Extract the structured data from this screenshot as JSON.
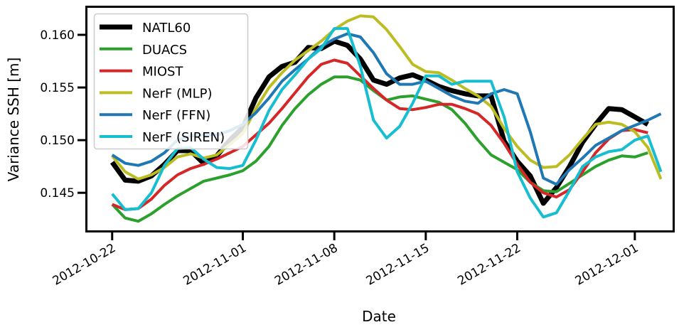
{
  "chart_data": {
    "type": "line",
    "title": "",
    "xlabel": "Date",
    "ylabel": "Variance SSH [m]",
    "x_ticks": [
      "2012-10-22",
      "2012-11-01",
      "2012-11-08",
      "2012-11-15",
      "2012-11-22",
      "2012-12-01"
    ],
    "y_ticks": [
      "0.145",
      "0.150",
      "0.155",
      "0.160"
    ],
    "xlim": [
      "2012-10-20",
      "2012-12-04"
    ],
    "ylim": [
      0.1413,
      0.1627
    ],
    "grid": false,
    "legend_position": "top-left",
    "x": [
      "2012-10-22",
      "2012-10-23",
      "2012-10-24",
      "2012-10-25",
      "2012-10-26",
      "2012-10-27",
      "2012-10-28",
      "2012-10-29",
      "2012-10-30",
      "2012-10-31",
      "2012-11-01",
      "2012-11-02",
      "2012-11-03",
      "2012-11-04",
      "2012-11-05",
      "2012-11-06",
      "2012-11-07",
      "2012-11-08",
      "2012-11-09",
      "2012-11-10",
      "2012-11-11",
      "2012-11-12",
      "2012-11-13",
      "2012-11-14",
      "2012-11-15",
      "2012-11-16",
      "2012-11-17",
      "2012-11-18",
      "2012-11-19",
      "2012-11-20",
      "2012-11-21",
      "2012-11-22",
      "2012-11-23",
      "2012-11-24",
      "2012-11-25",
      "2012-11-26",
      "2012-11-27",
      "2012-11-28",
      "2012-11-29",
      "2012-11-30",
      "2012-12-01",
      "2012-12-02",
      "2012-12-03"
    ],
    "series": [
      {
        "name": "NATL60",
        "color": "#000000",
        "values": [
          0.1479,
          0.1462,
          0.1461,
          0.1466,
          0.1477,
          0.149,
          0.149,
          0.1478,
          0.1485,
          0.15,
          0.1512,
          0.154,
          0.156,
          0.157,
          0.1574,
          0.1588,
          0.1587,
          0.1594,
          0.159,
          0.1577,
          0.1557,
          0.1553,
          0.1559,
          0.1562,
          0.1557,
          0.1551,
          0.1547,
          0.1544,
          0.1542,
          0.1542,
          0.1499,
          0.148,
          0.1466,
          0.144,
          0.1455,
          0.1475,
          0.1498,
          0.1515,
          0.153,
          0.1529,
          0.1522,
          0.1515,
          null
        ]
      },
      {
        "name": "DUACS",
        "color": "#2ca02c",
        "values": [
          0.1439,
          0.1426,
          0.1423,
          0.143,
          0.1439,
          0.1447,
          0.1454,
          0.1461,
          0.1464,
          0.1467,
          0.1471,
          0.148,
          0.1494,
          0.1514,
          0.153,
          0.1543,
          0.1553,
          0.156,
          0.156,
          0.1557,
          0.1547,
          0.1538,
          0.1541,
          0.1542,
          0.1539,
          0.1536,
          0.1529,
          0.1516,
          0.15,
          0.1486,
          0.1479,
          0.1472,
          0.146,
          0.1452,
          0.1451,
          0.1459,
          0.1467,
          0.1475,
          0.1481,
          0.1485,
          0.1484,
          0.1488,
          null
        ]
      },
      {
        "name": "MIOST",
        "color": "#d62728",
        "values": [
          0.1439,
          0.1434,
          0.1435,
          0.1444,
          0.1457,
          0.1467,
          0.1473,
          0.1477,
          0.1482,
          0.1488,
          0.1494,
          0.1505,
          0.1516,
          0.153,
          0.1545,
          0.156,
          0.1572,
          0.1576,
          0.1573,
          0.1561,
          0.1549,
          0.1538,
          0.153,
          0.1529,
          0.1531,
          0.1534,
          0.1534,
          0.153,
          0.1525,
          0.1514,
          0.1497,
          0.1477,
          0.146,
          0.145,
          0.1446,
          0.1453,
          0.147,
          0.1488,
          0.1501,
          0.1509,
          0.151,
          0.1507,
          null
        ]
      },
      {
        "name": "NerF (MLP)",
        "color": "#bcbd22",
        "values": [
          0.1485,
          0.147,
          0.1463,
          0.1467,
          0.1474,
          0.1484,
          0.1487,
          0.1483,
          0.1486,
          0.1496,
          0.1506,
          0.153,
          0.155,
          0.1564,
          0.1576,
          0.1585,
          0.1594,
          0.1605,
          0.1613,
          0.1618,
          0.1617,
          0.1605,
          0.1589,
          0.1572,
          0.1565,
          0.1564,
          0.1557,
          0.1549,
          0.1542,
          0.1532,
          0.1511,
          0.1494,
          0.1481,
          0.1474,
          0.1475,
          0.1486,
          0.1501,
          0.1515,
          0.1517,
          0.1515,
          0.1508,
          0.1493,
          0.1463
        ]
      },
      {
        "name": "NerF (FFN)",
        "color": "#1f77b4",
        "values": [
          0.1486,
          0.1478,
          0.1476,
          0.148,
          0.1488,
          0.15,
          0.1504,
          0.1505,
          0.1505,
          0.1509,
          0.1515,
          0.1526,
          0.154,
          0.1556,
          0.1567,
          0.1577,
          0.1589,
          0.1596,
          0.1601,
          0.1598,
          0.1583,
          0.1563,
          0.1553,
          0.1553,
          0.1556,
          0.1549,
          0.1542,
          0.1537,
          0.1535,
          0.1544,
          0.1548,
          0.1544,
          0.1508,
          0.1464,
          0.1458,
          0.1472,
          0.1483,
          0.1495,
          0.1502,
          0.1509,
          0.1514,
          0.1519,
          0.1525
        ]
      },
      {
        "name": "NerF (SIREN)",
        "color": "#17becf",
        "values": [
          0.1449,
          0.1434,
          0.1435,
          0.145,
          0.1476,
          0.1492,
          0.1493,
          0.1482,
          0.1474,
          0.1473,
          0.1476,
          0.15,
          0.1528,
          0.1548,
          0.1562,
          0.1577,
          0.1587,
          0.1606,
          0.1606,
          0.157,
          0.1519,
          0.1502,
          0.1513,
          0.1535,
          0.1561,
          0.1561,
          0.1553,
          0.1556,
          0.1556,
          0.1556,
          0.1522,
          0.147,
          0.1445,
          0.1427,
          0.1431,
          0.1452,
          0.1475,
          0.1484,
          0.1489,
          0.1491,
          0.15,
          0.1504,
          0.147
        ]
      }
    ]
  }
}
